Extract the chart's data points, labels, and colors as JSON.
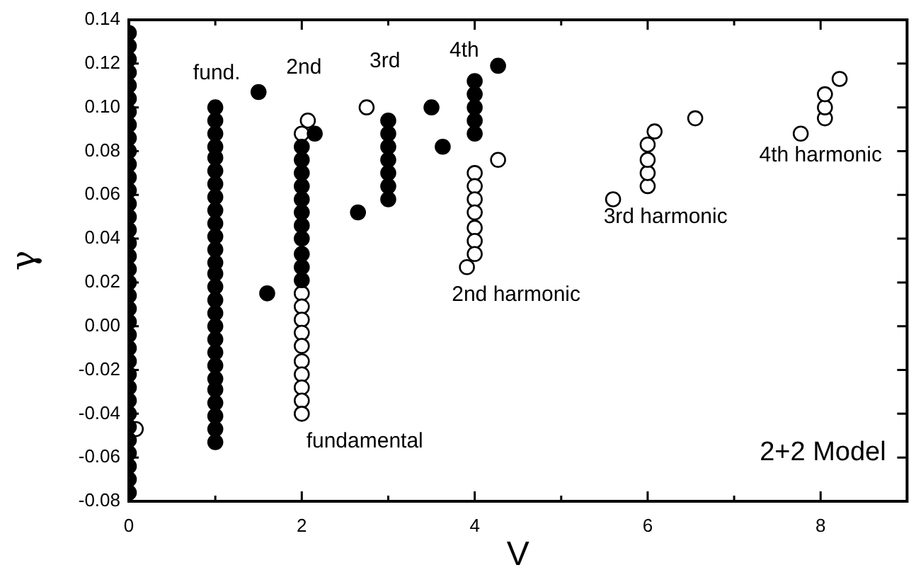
{
  "chart_data": {
    "type": "scatter",
    "xlabel": "V",
    "ylabel": "γ",
    "xlim": [
      0,
      9
    ],
    "ylim": [
      -0.08,
      0.14
    ],
    "xticks": [
      0,
      {
        "value": 1,
        "label": null
      },
      2,
      {
        "value": 3,
        "label": null
      },
      4,
      {
        "value": 5,
        "label": null
      },
      6,
      {
        "value": 7,
        "label": null
      },
      8
    ],
    "yticks": [
      {
        "value": -0.08,
        "label": "-0.08"
      },
      {
        "value": -0.06,
        "label": "-0.06"
      },
      {
        "value": -0.04,
        "label": "-0.04"
      },
      {
        "value": -0.02,
        "label": "-0.02"
      },
      {
        "value": 0,
        "label": "0.00"
      },
      {
        "value": 0.02,
        "label": "0.02"
      },
      {
        "value": 0.04,
        "label": "0.04"
      },
      {
        "value": 0.06,
        "label": "0.06"
      },
      {
        "value": 0.08,
        "label": "0.08"
      },
      {
        "value": 0.1,
        "label": "0.10"
      },
      {
        "value": 0.12,
        "label": "0.12"
      },
      {
        "value": 0.14,
        "label": "0.14"
      }
    ],
    "grid": false,
    "legend": false,
    "marker": "circle",
    "series": [
      {
        "color": "#000000",
        "x": [
          0,
          0,
          0,
          0,
          0,
          0,
          0,
          0,
          0,
          0,
          0,
          0,
          0,
          0,
          0,
          0,
          0,
          0,
          0,
          0,
          0,
          0,
          0,
          0,
          0,
          0,
          0,
          0,
          0,
          0,
          0,
          0,
          0,
          0,
          0,
          0,
          1,
          1,
          1,
          1,
          1,
          1,
          1,
          1,
          1,
          1,
          1,
          1,
          1,
          1,
          1,
          1,
          1,
          1,
          1,
          1,
          1,
          1,
          1,
          1,
          1,
          1,
          1,
          1.5,
          1.6,
          2,
          2,
          2,
          2,
          2,
          2,
          2,
          2,
          2,
          2,
          2,
          2.15,
          2.65,
          3,
          3,
          3,
          3,
          3,
          3,
          3,
          3.5,
          3.63,
          4,
          4,
          4,
          4,
          4,
          4.27
        ],
        "values": [
          0.134,
          0.128,
          0.122,
          0.116,
          0.11,
          0.104,
          0.098,
          0.092,
          0.086,
          0.08,
          0.074,
          0.068,
          0.062,
          0.056,
          0.05,
          0.044,
          0.038,
          0.032,
          0.026,
          0.02,
          0.014,
          0.008,
          0.002,
          -0.004,
          -0.01,
          -0.016,
          -0.022,
          -0.028,
          -0.034,
          -0.04,
          -0.046,
          -0.052,
          -0.058,
          -0.064,
          -0.07,
          -0.076,
          0.1,
          0.094,
          0.088,
          0.082,
          0.077,
          0.071,
          0.065,
          0.059,
          0.053,
          0.047,
          0.041,
          0.035,
          0.029,
          0.024,
          0.018,
          0.012,
          0.006,
          0,
          -0.006,
          -0.012,
          -0.018,
          -0.024,
          -0.029,
          -0.035,
          -0.041,
          -0.047,
          -0.053,
          0.107,
          0.015,
          0.082,
          0.076,
          0.07,
          0.064,
          0.058,
          0.052,
          0.046,
          0.04,
          0.033,
          0.027,
          0.021,
          0.088,
          0.052,
          0.094,
          0.088,
          0.082,
          0.076,
          0.07,
          0.064,
          0.058,
          0.1,
          0.082,
          0.112,
          0.106,
          0.1,
          0.094,
          0.088,
          0.119
        ]
      },
      {
        "color": "#ffffff",
        "x": [
          0.08,
          2,
          2,
          2,
          2,
          2,
          2,
          2,
          2,
          2,
          2,
          2,
          2.07,
          2.75,
          3.91,
          4,
          4,
          4,
          4,
          4,
          4,
          4,
          4.27,
          5.6,
          6,
          6,
          6,
          6,
          6.08,
          6.55,
          7.77,
          8.05,
          8.05,
          8.05,
          8.22
        ],
        "values": [
          -0.047,
          0.088,
          0.015,
          0.009,
          0.003,
          -0.003,
          -0.009,
          -0.016,
          -0.022,
          -0.028,
          -0.034,
          -0.04,
          0.094,
          0.1,
          0.027,
          0.07,
          0.064,
          0.058,
          0.052,
          0.045,
          0.039,
          0.033,
          0.076,
          0.058,
          0.064,
          0.07,
          0.076,
          0.083,
          0.089,
          0.095,
          0.088,
          0.095,
          0.1,
          0.106,
          0.113
        ]
      }
    ],
    "annotations": [
      "fund.",
      "2nd",
      "3rd",
      "4th",
      "fundamental",
      "2nd harmonic",
      "3rd harmonic",
      "4th harmonic",
      "2+2 Model"
    ]
  }
}
